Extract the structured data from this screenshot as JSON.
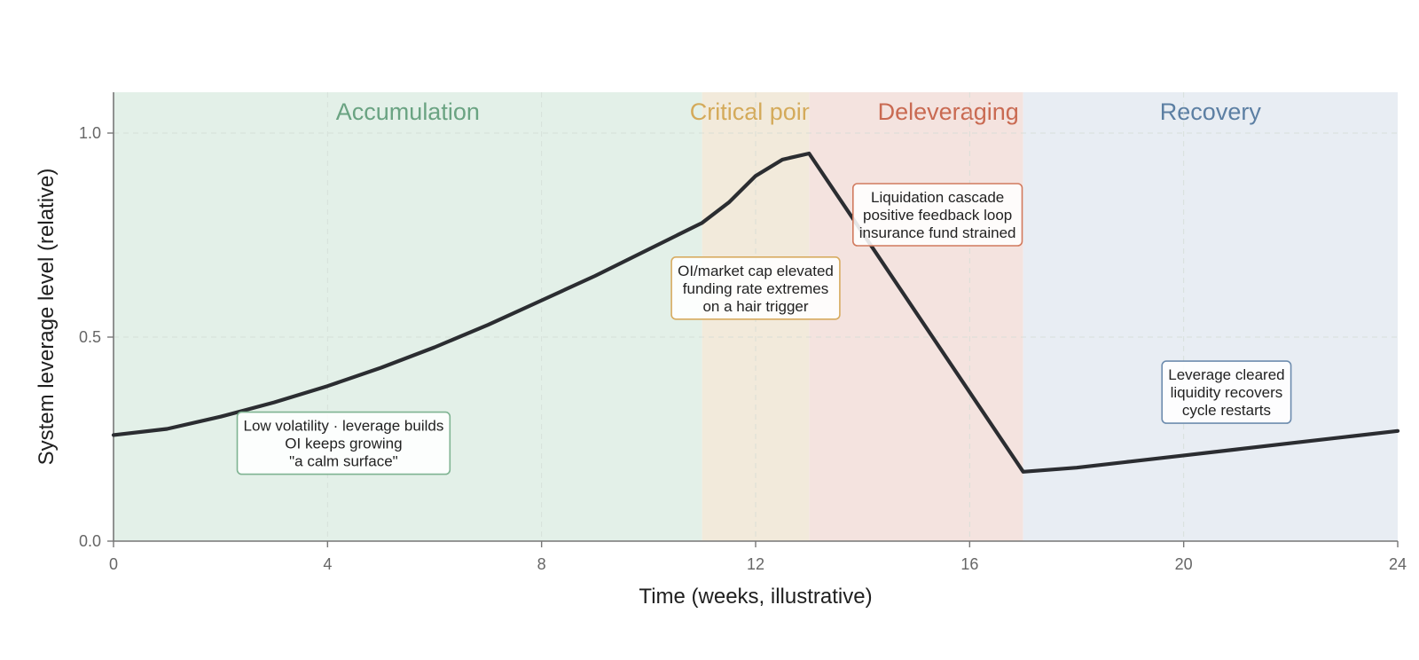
{
  "chart_data": {
    "type": "line",
    "title": "",
    "xlabel": "Time (weeks, illustrative)",
    "ylabel": "System leverage level (relative)",
    "xlim": [
      0,
      24
    ],
    "ylim": [
      0,
      1.1
    ],
    "x_ticks": [
      0,
      4,
      8,
      12,
      16,
      20,
      24
    ],
    "y_ticks": [
      0.0,
      0.5,
      1.0
    ],
    "x_tick_labels": [
      "0",
      "4",
      "8",
      "12",
      "16",
      "20",
      "24"
    ],
    "y_tick_labels": [
      "0.0",
      "0.5",
      "1.0"
    ],
    "grid": true,
    "line_color": "#2b2d31",
    "series": [
      {
        "x": [
          0,
          1,
          2,
          3,
          4,
          5,
          6,
          7,
          8,
          9,
          10,
          11,
          11.5,
          12,
          12.5,
          13,
          14,
          15,
          16,
          17,
          18,
          19,
          20,
          21,
          22,
          23,
          24
        ],
        "y": [
          0.26,
          0.275,
          0.305,
          0.34,
          0.38,
          0.425,
          0.475,
          0.53,
          0.59,
          0.65,
          0.715,
          0.78,
          0.83,
          0.895,
          0.935,
          0.95,
          0.755,
          0.56,
          0.365,
          0.17,
          0.18,
          0.195,
          0.21,
          0.225,
          0.24,
          0.255,
          0.27
        ]
      }
    ],
    "phases": [
      {
        "name": "Accumulation",
        "x_start": 0,
        "x_end": 11,
        "fill": "#e3f0e8",
        "label_color": "#6aa382",
        "label_x": 5.5
      },
      {
        "name": "Critical point",
        "x_start": 11,
        "x_end": 13,
        "fill": "#f2eadb",
        "label_color": "#d4aa5a",
        "label_x": 12
      },
      {
        "name": "Deleveraging",
        "x_start": 13,
        "x_end": 17,
        "fill": "#f4e3df",
        "label_color": "#c96a52",
        "label_x": 15.6
      },
      {
        "name": "Recovery",
        "x_start": 17,
        "x_end": 24,
        "fill": "#e8edf3",
        "label_color": "#5c7fa3",
        "label_x": 20.5
      }
    ],
    "annotations": [
      {
        "lines": [
          "Low volatility · leverage builds",
          "OI keeps growing",
          "\"a calm surface\""
        ],
        "x": 4.3,
        "y": 0.24,
        "border": "#7fb392"
      },
      {
        "lines": [
          "OI/market cap elevated",
          "funding rate extremes",
          "on a hair trigger"
        ],
        "x": 12.0,
        "y": 0.62,
        "border": "#d7ab5f"
      },
      {
        "lines": [
          "Liquidation cascade",
          "positive feedback loop",
          "insurance fund strained"
        ],
        "x": 15.4,
        "y": 0.8,
        "border": "#d17a5e"
      },
      {
        "lines": [
          "Leverage cleared",
          "liquidity recovers",
          "cycle restarts"
        ],
        "x": 20.8,
        "y": 0.365,
        "border": "#6d8cae"
      }
    ]
  }
}
